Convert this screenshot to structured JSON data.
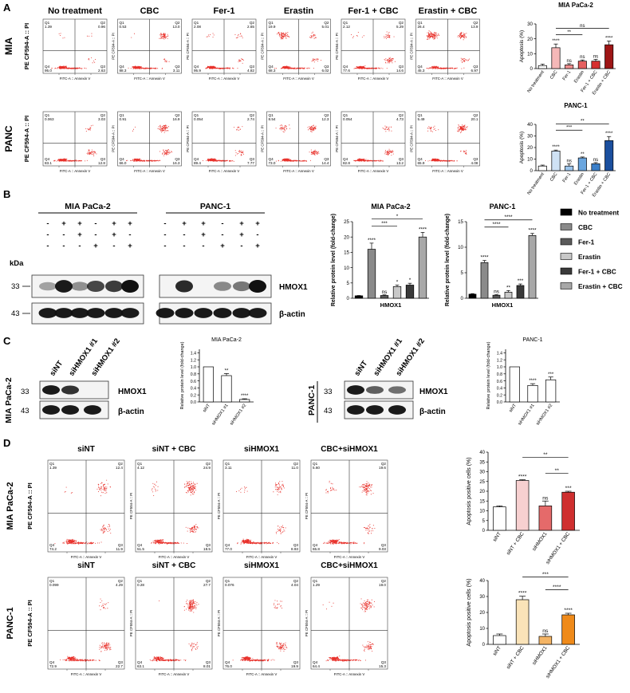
{
  "panels": {
    "A": {
      "letter": "A",
      "conditions": [
        "No treatment",
        "CBC",
        "Fer-1",
        "Erastin",
        "Fer-1 + CBC",
        "Erastin + CBC"
      ],
      "rows": [
        {
          "row_label": "MIA",
          "axis_y": "PE CF594-A :: PI",
          "axis_x": "FITC-A :: Annexin V",
          "quadrants": [
            {
              "q1": "1.39",
              "q2": "0.96",
              "q3": "2.63",
              "q4": "95.0"
            },
            {
              "q1": "0.53",
              "q2": "13.0",
              "q3": "3.11",
              "q4": "88.3"
            },
            {
              "q1": "2.08",
              "q2": "2.65",
              "q3": "4.82",
              "q4": "95.9"
            },
            {
              "q1": "19.9",
              "q2": "5.01",
              "q3": "6.02",
              "q4": "68.3"
            },
            {
              "q1": "2.12",
              "q2": "5.29",
              "q3": "14.6",
              "q4": "77.6"
            },
            {
              "q1": "26.4",
              "q2": "13.9",
              "q3": "6.97",
              "q4": "45.3"
            }
          ]
        },
        {
          "row_label": "PANC",
          "axis_y": "PE CF594-A :: PI",
          "axis_x": "FITC-A :: Annexin V",
          "quadrants": [
            {
              "q1": "0.063",
              "q2": "3.03",
              "q3": "12.8",
              "q4": "83.1"
            },
            {
              "q1": "0.91",
              "q2": "16.9",
              "q3": "16.3",
              "q4": "66.0"
            },
            {
              "q1": "0.054",
              "q2": "2.74",
              "q3": "7.77",
              "q4": "89.4"
            },
            {
              "q1": "8.54",
              "q2": "12.3",
              "q3": "14.4",
              "q4": "73.0"
            },
            {
              "q1": "0.054",
              "q2": "4.73",
              "q3": "13.2",
              "q4": "82.8"
            },
            {
              "q1": "5.49",
              "q2": "20.1",
              "q3": "4.08",
              "q4": "65.9"
            }
          ]
        }
      ]
    },
    "B": {
      "letter": "B",
      "cell_lines": [
        "MIA PaCa-2",
        "PANC-1"
      ],
      "treatment_rows": [
        [
          "-",
          "+",
          "+",
          "-",
          "+",
          "+"
        ],
        [
          "-",
          "-",
          "+",
          "-",
          "+",
          "-"
        ],
        [
          "-",
          "-",
          "-",
          "+",
          "-",
          "+"
        ]
      ],
      "kda_label": "kDa",
      "mw": [
        "33",
        "43"
      ],
      "proteins": [
        "HMOX1",
        "β-actin"
      ],
      "legend": [
        "No treatment",
        "CBC",
        "Fer-1",
        "Erastin",
        "Fer-1 + CBC",
        "Erastin + CBC"
      ]
    },
    "C": {
      "letter": "C",
      "lanes": [
        "siNT",
        "siHMOX1 #1",
        "siHMOX1 #2"
      ],
      "cell_lines": [
        "MIA PaCa-2",
        "PANC-1"
      ],
      "mw": [
        "33",
        "43"
      ],
      "proteins": [
        "HMOX1",
        "β-actin"
      ]
    },
    "D": {
      "letter": "D",
      "conditions": [
        "siNT",
        "siNT + CBC",
        "siHMOX1",
        "CBC+siHMOX1"
      ],
      "rows": [
        {
          "row_label": "MIA PaCa-2",
          "axis_y": "PE CF594-A :: PI",
          "axis_x": "FITC-A :: Annexin V",
          "quadrants": [
            {
              "q1": "1.39",
              "q2": "12.4",
              "q3": "11.9",
              "q4": "74.2"
            },
            {
              "q1": "4.12",
              "q2": "24.9",
              "q3": "18.5",
              "q4": "51.5"
            },
            {
              "q1": "3.11",
              "q2": "11.0",
              "q3": "8.93",
              "q4": "77.0"
            },
            {
              "q1": "5.60",
              "q2": "19.6",
              "q3": "9.03",
              "q4": "65.8"
            }
          ]
        },
        {
          "row_label": "PANC-1",
          "axis_y": "PE CF594-A :: PI",
          "axis_x": "FITC-A :: Annexin V",
          "quadrants": [
            {
              "q1": "0.099",
              "q2": "4.29",
              "q3": "22.7",
              "q4": "72.9"
            },
            {
              "q1": "0.28",
              "q2": "27.7",
              "q3": "8.01",
              "q4": "63.1"
            },
            {
              "q1": "0.076",
              "q2": "4.04",
              "q3": "19.9",
              "q4": "76.0"
            },
            {
              "q1": "1.29",
              "q2": "19.0",
              "q3": "15.3",
              "q4": "64.4"
            }
          ]
        }
      ]
    }
  },
  "chart_data": [
    {
      "id": "A-MIA",
      "type": "bar",
      "title": "MIA PaCa-2",
      "ylabel": "Apoptosis (%)",
      "ylim": [
        0,
        30
      ],
      "yticks": [
        0,
        10,
        20,
        30
      ],
      "categories": [
        "No treatment",
        "CBC",
        "Fer-1",
        "Erastin",
        "Fer-1 + CBC",
        "Erastin + CBC"
      ],
      "values": [
        2,
        14,
        2.5,
        5,
        5,
        16
      ],
      "errors": [
        1,
        2.5,
        0.8,
        0.8,
        1.2,
        2.5
      ],
      "sig": [
        "",
        "****",
        "ns",
        "ns",
        "ns",
        "****"
      ],
      "colors": [
        "#ffffff",
        "#f5b8b8",
        "#f08f8f",
        "#e56060",
        "#d63030",
        "#9e1515"
      ],
      "brackets": [
        {
          "from": 1,
          "to": 5,
          "label": "ns",
          "level": 2
        },
        {
          "from": 1,
          "to": 3,
          "label": "**",
          "level": 1
        }
      ]
    },
    {
      "id": "A-PANC",
      "type": "bar",
      "title": "PANC-1",
      "ylabel": "Apoptosis (%)",
      "ylim": [
        0,
        40
      ],
      "yticks": [
        0,
        10,
        20,
        30,
        40
      ],
      "categories": [
        "No treatment",
        "CBC",
        "Fer-1",
        "Erastin",
        "Fer-1 + CBC",
        "Erastin + CBC"
      ],
      "values": [
        4,
        17,
        4,
        11,
        6,
        26
      ],
      "errors": [
        0.8,
        0.8,
        2,
        0.8,
        1,
        3.5
      ],
      "sig": [
        "",
        "****",
        "ns",
        "**",
        "ns",
        "****"
      ],
      "colors": [
        "#ffffff",
        "#cfe2f5",
        "#9cc5ec",
        "#6aa6df",
        "#3b7fc9",
        "#1b4f9e"
      ],
      "brackets": [
        {
          "from": 1,
          "to": 5,
          "label": "**",
          "level": 2
        },
        {
          "from": 1,
          "to": 3,
          "label": "***",
          "level": 1
        }
      ]
    },
    {
      "id": "B-MIA",
      "type": "bar",
      "title": "MIA PaCa-2",
      "ylabel": "Relative protein level (fold-change)",
      "xlabel": "HMOX1",
      "ylim": [
        0,
        25
      ],
      "yticks": [
        0,
        5,
        10,
        15,
        20,
        25
      ],
      "categories": [
        "No treatment",
        "CBC",
        "Fer-1",
        "Erastin",
        "Fer-1 + CBC",
        "Erastin + CBC"
      ],
      "values": [
        0.8,
        16,
        0.9,
        3.8,
        4.3,
        20
      ],
      "errors": [
        0.1,
        2,
        0.2,
        0.5,
        0.6,
        1.5
      ],
      "sig": [
        "",
        "****",
        "ns",
        "*",
        "*",
        "****"
      ],
      "colors": [
        "#000000",
        "#8a8a8a",
        "#5a5a5a",
        "#c8c8c8",
        "#3a3a3a",
        "#a8a8a8"
      ],
      "brackets": [
        {
          "from": 1,
          "to": 5,
          "label": "*",
          "level": 2
        },
        {
          "from": 1,
          "to": 3,
          "label": "***",
          "level": 1
        }
      ]
    },
    {
      "id": "B-PANC",
      "type": "bar",
      "title": "PANC-1",
      "ylabel": "Relative protein level (fold-change)",
      "xlabel": "HMOX1",
      "ylim": [
        0,
        15
      ],
      "yticks": [
        0,
        5,
        10,
        15
      ],
      "categories": [
        "No treatment",
        "CBC",
        "Fer-1",
        "Erastin",
        "Fer-1 + CBC",
        "Erastin + CBC"
      ],
      "values": [
        0.8,
        7,
        0.6,
        1.2,
        2.5,
        12.3
      ],
      "errors": [
        0.1,
        0.4,
        0.1,
        0.3,
        0.3,
        0.4
      ],
      "sig": [
        "",
        "****",
        "ns",
        "**",
        "***",
        "****"
      ],
      "colors": [
        "#000000",
        "#8a8a8a",
        "#5a5a5a",
        "#c8c8c8",
        "#3a3a3a",
        "#a8a8a8"
      ],
      "brackets": [
        {
          "from": 1,
          "to": 5,
          "label": "****",
          "level": 2
        },
        {
          "from": 1,
          "to": 3,
          "label": "****",
          "level": 1
        }
      ]
    },
    {
      "id": "C-MIA",
      "type": "bar",
      "title": "MIA PaCa-2",
      "ylabel": "Relative protein level (fold-change)",
      "ylim": [
        0,
        1.5
      ],
      "yticks": [
        0.0,
        0.2,
        0.4,
        0.6,
        0.8,
        1.0,
        1.2,
        1.4
      ],
      "categories": [
        "siNT",
        "siHMOX1 #1",
        "siHMOX1 #2"
      ],
      "values": [
        1.0,
        0.75,
        0.07
      ],
      "errors": [
        0,
        0.06,
        0.02
      ],
      "sig": [
        "",
        "**",
        "****"
      ],
      "colors": [
        "#ffffff",
        "#ffffff",
        "#ffffff"
      ],
      "brackets": []
    },
    {
      "id": "C-PANC",
      "type": "bar",
      "title": "PANC-1",
      "ylabel": "Relative protein level (fold-change)",
      "ylim": [
        0,
        1.5
      ],
      "yticks": [
        0.0,
        0.2,
        0.4,
        0.6,
        0.8,
        1.0,
        1.2,
        1.4
      ],
      "categories": [
        "siNT",
        "siHMOX1 #1",
        "siHMOX1 #2"
      ],
      "values": [
        1.0,
        0.47,
        0.63
      ],
      "errors": [
        0,
        0.05,
        0.08
      ],
      "sig": [
        "",
        "****",
        "***"
      ],
      "colors": [
        "#ffffff",
        "#ffffff",
        "#ffffff"
      ],
      "brackets": []
    },
    {
      "id": "D-MIA",
      "type": "bar",
      "ylabel": "Apoptosis positive cells (%)",
      "ylim": [
        0,
        40
      ],
      "yticks": [
        0,
        5,
        10,
        15,
        20,
        25,
        30,
        35,
        40
      ],
      "categories": [
        "siNT",
        "siNT + CBC",
        "siHMOX1",
        "siHMOX1 + CBC"
      ],
      "values": [
        12,
        25.5,
        12.5,
        19.5
      ],
      "errors": [
        0.5,
        0.4,
        2.5,
        0.5
      ],
      "sig": [
        "",
        "****",
        "ns",
        "***"
      ],
      "colors": [
        "#ffffff",
        "#f7d0d0",
        "#e56a6a",
        "#cf2f2f"
      ],
      "brackets": [
        {
          "from": 1,
          "to": 3,
          "label": "**",
          "level": 2
        },
        {
          "from": 2,
          "to": 3,
          "label": "**",
          "level": 1
        }
      ]
    },
    {
      "id": "D-PANC",
      "type": "bar",
      "ylabel": "Apoptosis positive cells (%)",
      "ylim": [
        0,
        40
      ],
      "yticks": [
        0,
        10,
        20,
        30,
        40
      ],
      "categories": [
        "siNT",
        "siNT + CBC",
        "siHMOX1",
        "siHMOX1 + CBC"
      ],
      "values": [
        5.5,
        28,
        5,
        18.5
      ],
      "errors": [
        1,
        2.2,
        1.5,
        1
      ],
      "sig": [
        "",
        "****",
        "ns",
        "****"
      ],
      "colors": [
        "#ffffff",
        "#fae3b8",
        "#f4b464",
        "#ef8a1a"
      ],
      "brackets": [
        {
          "from": 1,
          "to": 3,
          "label": "***",
          "level": 2
        },
        {
          "from": 2,
          "to": 3,
          "label": "****",
          "level": 1
        }
      ]
    }
  ]
}
